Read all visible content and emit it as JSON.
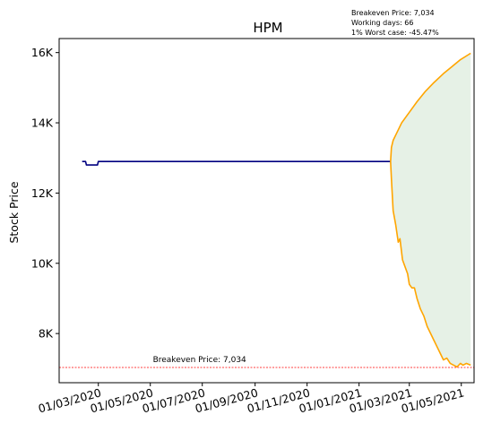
{
  "chart_data": {
    "type": "line",
    "title": "HPM",
    "ylabel": "Stock Price",
    "xlabel": "",
    "ylim": [
      6600,
      16400
    ],
    "xlim": [
      "2020-01-15",
      "2021-05-16"
    ],
    "y_ticks": [
      8000,
      10000,
      12000,
      14000,
      16000
    ],
    "y_tick_labels": [
      "8K",
      "10K",
      "12K",
      "14K",
      "16K"
    ],
    "x_ticks": [
      "2020-03-01",
      "2020-05-01",
      "2020-07-01",
      "2020-09-01",
      "2020-11-01",
      "2021-01-01",
      "2021-03-01",
      "2021-05-01"
    ],
    "x_tick_labels": [
      "01/03/2020",
      "01/05/2020",
      "01/07/2020",
      "01/09/2020",
      "01/11/2020",
      "01/01/2021",
      "01/03/2021",
      "01/05/2021"
    ],
    "grid": false,
    "info_lines": [
      "Breakeven Price: 7,034",
      "Working days: 66",
      "1% Worst case: -45.47%"
    ],
    "breakeven": {
      "value": 7034,
      "label": "Breakeven Price: 7,034",
      "color": "#ff0000"
    },
    "historical": {
      "color": "#000080",
      "points": [
        [
          "2020-02-11",
          12900
        ],
        [
          "2020-02-15",
          12900
        ],
        [
          "2020-02-16",
          12800
        ],
        [
          "2020-02-29",
          12800
        ],
        [
          "2020-03-01",
          12900
        ],
        [
          "2021-02-07",
          12900
        ]
      ]
    },
    "projection_upper": {
      "color": "#ffa500",
      "points": [
        [
          "2021-02-07",
          12900
        ],
        [
          "2021-02-08",
          13300
        ],
        [
          "2021-02-10",
          13500
        ],
        [
          "2021-02-14",
          13700
        ],
        [
          "2021-02-20",
          14000
        ],
        [
          "2021-03-01",
          14300
        ],
        [
          "2021-03-10",
          14600
        ],
        [
          "2021-03-20",
          14900
        ],
        [
          "2021-03-30",
          15150
        ],
        [
          "2021-04-10",
          15400
        ],
        [
          "2021-04-20",
          15600
        ],
        [
          "2021-04-30",
          15800
        ],
        [
          "2021-05-10",
          15950
        ],
        [
          "2021-05-12",
          15980
        ]
      ]
    },
    "projection_lower": {
      "color": "#ffa500",
      "points": [
        [
          "2021-02-07",
          12900
        ],
        [
          "2021-02-08",
          12400
        ],
        [
          "2021-02-10",
          11500
        ],
        [
          "2021-02-13",
          11100
        ],
        [
          "2021-02-16",
          10600
        ],
        [
          "2021-02-18",
          10700
        ],
        [
          "2021-02-21",
          10100
        ],
        [
          "2021-02-24",
          9900
        ],
        [
          "2021-02-27",
          9700
        ],
        [
          "2021-03-01",
          9400
        ],
        [
          "2021-03-04",
          9300
        ],
        [
          "2021-03-07",
          9300
        ],
        [
          "2021-03-10",
          9000
        ],
        [
          "2021-03-14",
          8700
        ],
        [
          "2021-03-18",
          8500
        ],
        [
          "2021-03-22",
          8200
        ],
        [
          "2021-03-26",
          8000
        ],
        [
          "2021-03-30",
          7800
        ],
        [
          "2021-04-03",
          7600
        ],
        [
          "2021-04-07",
          7400
        ],
        [
          "2021-04-10",
          7250
        ],
        [
          "2021-04-14",
          7300
        ],
        [
          "2021-04-18",
          7150
        ],
        [
          "2021-04-22",
          7100
        ],
        [
          "2021-04-26",
          7050
        ],
        [
          "2021-04-30",
          7150
        ],
        [
          "2021-05-03",
          7100
        ],
        [
          "2021-05-07",
          7150
        ],
        [
          "2021-05-12",
          7100
        ]
      ]
    },
    "fill": {
      "color": "#2e8b2e",
      "opacity": 0.12
    }
  }
}
